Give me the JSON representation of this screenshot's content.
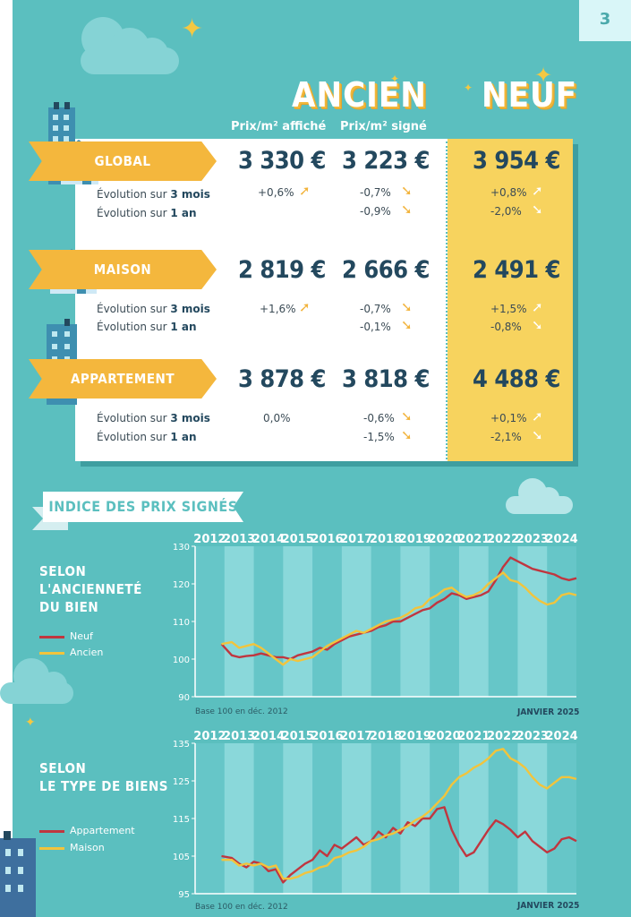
{
  "page_number": "3",
  "headers": {
    "ancien": "ANCIEN",
    "neuf": "NEUF"
  },
  "column_headers": {
    "affiche": "Prix/m² affiché",
    "signe": "Prix/m² signé"
  },
  "rows": [
    {
      "label": "GLOBAL",
      "affiche": "3 330 €",
      "signe": "3 223 €",
      "neuf": "3 954 €",
      "evo3_label_a": "Évolution sur ",
      "evo3_label_b": "3 mois",
      "evo1_label_a": "Évolution sur ",
      "evo1_label_b": "1 an",
      "affiche_3m": "+0,6%",
      "affiche_3m_dir": "up",
      "affiche_1y": "",
      "signe_3m": "-0,7%",
      "signe_3m_dir": "down",
      "signe_1y": "-0,9%",
      "signe_1y_dir": "down",
      "neuf_3m": "+0,8%",
      "neuf_3m_dir": "up",
      "neuf_1y": "-2,0%",
      "neuf_1y_dir": "down"
    },
    {
      "label": "MAISON",
      "affiche": "2 819 €",
      "signe": "2 666 €",
      "neuf": "2 491 €",
      "evo3_label_a": "Évolution sur ",
      "evo3_label_b": "3 mois",
      "evo1_label_a": "Évolution sur ",
      "evo1_label_b": "1 an",
      "affiche_3m": "+1,6%",
      "affiche_3m_dir": "up",
      "affiche_1y": "",
      "signe_3m": "-0,7%",
      "signe_3m_dir": "down",
      "signe_1y": "-0,1%",
      "signe_1y_dir": "down",
      "neuf_3m": "+1,5%",
      "neuf_3m_dir": "up",
      "neuf_1y": "-0,8%",
      "neuf_1y_dir": "down"
    },
    {
      "label": "APPARTEMENT",
      "affiche": "3 878 €",
      "signe": "3 818 €",
      "neuf": "4 488 €",
      "evo3_label_a": "Évolution sur ",
      "evo3_label_b": "3 mois",
      "evo1_label_a": "Évolution sur ",
      "evo1_label_b": "1 an",
      "affiche_3m": "0,0%",
      "affiche_3m_dir": "none",
      "affiche_1y": "",
      "signe_3m": "-0,6%",
      "signe_3m_dir": "down",
      "signe_1y": "-1,5%",
      "signe_1y_dir": "down",
      "neuf_3m": "+0,1%",
      "neuf_3m_dir": "up",
      "neuf_1y": "-2,1%",
      "neuf_1y_dir": "down"
    }
  ],
  "index_banner": "INDICE DES PRIX SIGNÉS",
  "colors": {
    "neuf": "#c0363f",
    "ancien": "#f2c43c",
    "appartement": "#c0363f",
    "maison": "#f2c43c",
    "accent": "#f4b73d",
    "teal": "#5bbfbf"
  },
  "chart_data": [
    {
      "type": "line",
      "side_title": [
        "SELON",
        "L'ANCIENNETÉ",
        "DU BIEN"
      ],
      "years": [
        "2012",
        "2013",
        "2014",
        "2015",
        "2016",
        "2017",
        "2018",
        "2019",
        "2020",
        "2021",
        "2022",
        "2023",
        "2024"
      ],
      "ylim": [
        90,
        130
      ],
      "yticks": [
        90,
        100,
        110,
        120,
        130
      ],
      "footnote": "Base 100 en déc. 2012",
      "date_label": "JANVIER 2025",
      "x": [
        2012.9,
        2013.25,
        2013.5,
        2013.75,
        2014.0,
        2014.25,
        2014.5,
        2014.75,
        2015.0,
        2015.25,
        2015.5,
        2015.75,
        2016.0,
        2016.25,
        2016.5,
        2016.75,
        2017.0,
        2017.25,
        2017.5,
        2017.75,
        2018.0,
        2018.25,
        2018.5,
        2018.75,
        2019.0,
        2019.25,
        2019.5,
        2019.75,
        2020.0,
        2020.25,
        2020.5,
        2020.75,
        2021.0,
        2021.25,
        2021.5,
        2021.75,
        2022.0,
        2022.25,
        2022.5,
        2022.75,
        2023.0,
        2023.25,
        2023.5,
        2023.75,
        2024.0,
        2024.25,
        2024.5,
        2024.75,
        2025.0
      ],
      "series": [
        {
          "name": "Neuf",
          "values": [
            104,
            101,
            100.5,
            100.8,
            101,
            101.5,
            101,
            100.5,
            100.5,
            100,
            101,
            101.5,
            102,
            103,
            102.5,
            104,
            105,
            106,
            106.5,
            107,
            107.5,
            108.5,
            109,
            110,
            110,
            111,
            112,
            113,
            113.5,
            115,
            116,
            117.5,
            117,
            116,
            116.5,
            117,
            118,
            121,
            124.5,
            127,
            126,
            125,
            124,
            123.5,
            123,
            122.5,
            121.5,
            121,
            121.5
          ]
        },
        {
          "name": "Ancien",
          "values": [
            104,
            104.5,
            103,
            103.5,
            104,
            103,
            101.5,
            100,
            98.5,
            100,
            99.5,
            100,
            100.5,
            102,
            103.5,
            104.5,
            105.5,
            106.5,
            107.5,
            107,
            108,
            109,
            110,
            110.5,
            111,
            112,
            113.5,
            114,
            116,
            117,
            118.5,
            119,
            117.5,
            116.5,
            117,
            118,
            120,
            121.5,
            123,
            121,
            120.5,
            119,
            117,
            115.5,
            114.5,
            115,
            117,
            117.5,
            117
          ]
        }
      ]
    },
    {
      "type": "line",
      "side_title": [
        "SELON",
        "LE TYPE DE BIENS"
      ],
      "years": [
        "2012",
        "2013",
        "2014",
        "2015",
        "2016",
        "2017",
        "2018",
        "2019",
        "2020",
        "2021",
        "2022",
        "2023",
        "2024"
      ],
      "ylim": [
        95,
        135
      ],
      "yticks": [
        95,
        105,
        115,
        125,
        135
      ],
      "footnote": "Base 100 en déc. 2012",
      "date_label": "JANVIER 2025",
      "x": [
        2012.9,
        2013.25,
        2013.5,
        2013.75,
        2014.0,
        2014.25,
        2014.5,
        2014.75,
        2015.0,
        2015.25,
        2015.5,
        2015.75,
        2016.0,
        2016.25,
        2016.5,
        2016.75,
        2017.0,
        2017.25,
        2017.5,
        2017.75,
        2018.0,
        2018.25,
        2018.5,
        2018.75,
        2019.0,
        2019.25,
        2019.5,
        2019.75,
        2020.0,
        2020.25,
        2020.5,
        2020.75,
        2021.0,
        2021.25,
        2021.5,
        2021.75,
        2022.0,
        2022.25,
        2022.5,
        2022.75,
        2023.0,
        2023.25,
        2023.5,
        2023.75,
        2024.0,
        2024.25,
        2024.5,
        2024.75,
        2025.0
      ],
      "series": [
        {
          "name": "Appartement",
          "values": [
            105,
            104.5,
            103,
            102,
            103.5,
            103,
            101,
            101.5,
            98,
            100,
            101.5,
            103,
            104,
            106.5,
            105,
            108,
            107,
            108.5,
            110,
            108,
            109,
            111.5,
            110,
            112.5,
            111,
            114,
            113,
            115,
            115,
            117.5,
            118,
            112,
            108,
            105,
            106,
            109,
            112,
            114.5,
            113.5,
            112,
            110,
            111.5,
            109,
            107.5,
            106,
            107,
            109.5,
            110,
            109
          ]
        },
        {
          "name": "Maison",
          "values": [
            104,
            104,
            102.5,
            103,
            102.5,
            103,
            102,
            102.5,
            99,
            99,
            99.5,
            100.5,
            101,
            102,
            102.5,
            104.5,
            105,
            106,
            106.5,
            107.5,
            109,
            109.5,
            110.5,
            111,
            112,
            113,
            114.5,
            115.5,
            117,
            119,
            121,
            124,
            126,
            127,
            128.5,
            129.5,
            131,
            133,
            133.5,
            131,
            130,
            128.5,
            126,
            124,
            123,
            124.5,
            126,
            126,
            125.5
          ]
        }
      ]
    }
  ]
}
